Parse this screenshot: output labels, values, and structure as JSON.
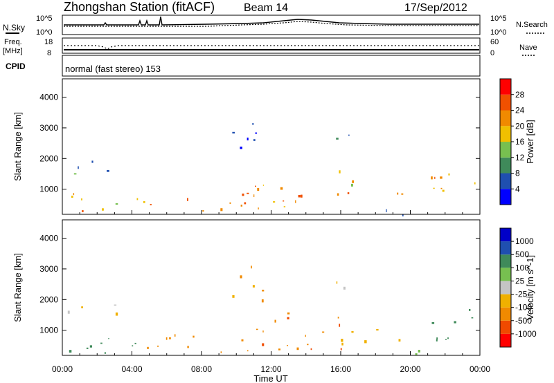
{
  "header": {
    "station": "Zhongshan Station (fitACF)",
    "beam": "Beam 14",
    "date": "17/Sep/2012"
  },
  "noise_panel": {
    "left_label": "N.Sky",
    "right_label": "N.Search",
    "ticks_left": [
      "10^5",
      "10^0"
    ],
    "ticks_right": [
      "10^5",
      "10^0"
    ]
  },
  "freq_panel": {
    "left_label_1": "Freq.",
    "left_label_2": "[MHz]",
    "ticks_left": [
      "18",
      "8"
    ],
    "ticks_right": [
      "60",
      "0"
    ],
    "right_label": "Nave"
  },
  "cpid_panel": {
    "label": "CPID",
    "text": "normal (fast stereo) 153"
  },
  "colors": {
    "power": [
      "#0000ff",
      "#1f4fb0",
      "#3f8a5a",
      "#77c050",
      "#f0c000",
      "#f08a00",
      "#f05000",
      "#ff0000"
    ],
    "velocity": [
      "#ff0000",
      "#f04a00",
      "#f08a00",
      "#f0b000",
      "#c4c4c4",
      "#77c050",
      "#3f8a5a",
      "#1f4fb0",
      "#0000c8"
    ]
  },
  "chart_data": [
    {
      "type": "heatmap",
      "title": "",
      "xlabel": "Time UT",
      "ylabel": "Slant Range [km]",
      "x_ticks": [
        "00:00",
        "04:00",
        "08:00",
        "12:00",
        "16:00",
        "20:00",
        "00:00"
      ],
      "y_ticks": [
        "1000",
        "2000",
        "3000",
        "4000"
      ],
      "xlim": [
        0,
        24
      ],
      "ylim": [
        180,
        4600
      ],
      "colorbar_label": "Power [dB]",
      "colorbar_ticks": [
        "28",
        "24",
        "20",
        "16",
        "12",
        "8",
        "4"
      ],
      "colorbar_range": [
        0,
        32
      ],
      "scatter_regions": [
        {
          "t": [
            0.0,
            2.2
          ],
          "r": [
            250,
            1050
          ],
          "v": 22
        },
        {
          "t": [
            0.0,
            3.8
          ],
          "r": [
            1500,
            1950
          ],
          "v": 8
        },
        {
          "t": [
            2.0,
            5.0
          ],
          "r": [
            350,
            900
          ],
          "v": 20
        },
        {
          "t": [
            5.0,
            10.5
          ],
          "r": [
            300,
            900
          ],
          "v": 24
        },
        {
          "t": [
            10.5,
            15.0
          ],
          "r": [
            400,
            1300
          ],
          "v": 22
        },
        {
          "t": [
            12.5,
            14.5
          ],
          "r": [
            600,
            1100
          ],
          "v": 28
        },
        {
          "t": [
            15.0,
            16.8
          ],
          "r": [
            800,
            1700
          ],
          "v": 16
        },
        {
          "t": [
            16.0,
            17.0
          ],
          "r": [
            600,
            1000
          ],
          "v": 24
        },
        {
          "t": [
            17.2,
            19.5
          ],
          "r": [
            600,
            1000
          ],
          "v": 26
        },
        {
          "t": [
            18.0,
            21.0
          ],
          "r": [
            180,
            500
          ],
          "v": 6
        },
        {
          "t": [
            21.0,
            24.0
          ],
          "r": [
            600,
            1700
          ],
          "v": 22
        },
        {
          "t": [
            15.5,
            16.5
          ],
          "r": [
            2300,
            2900
          ],
          "v": 6
        },
        {
          "t": [
            9.5,
            11.5
          ],
          "r": [
            2000,
            3200
          ],
          "v": 6
        }
      ]
    },
    {
      "type": "heatmap",
      "title": "",
      "xlabel": "Time UT",
      "ylabel": "Slant Range [km]",
      "x_ticks": [
        "00:00",
        "04:00",
        "08:00",
        "12:00",
        "16:00",
        "20:00",
        "00:00"
      ],
      "y_ticks": [
        "1000",
        "2000",
        "3000",
        "4000"
      ],
      "xlim": [
        0,
        24
      ],
      "ylim": [
        180,
        4600
      ],
      "colorbar_label": "Velocity [m s^-1]",
      "colorbar_ticks": [
        "1000",
        "500",
        "100",
        "25",
        "-25",
        "-100",
        "-500",
        "-1000"
      ],
      "scatter_regions": [
        {
          "t": [
            0.0,
            4.5
          ],
          "r": [
            250,
            1000
          ],
          "v": 200
        },
        {
          "t": [
            0.0,
            3.5
          ],
          "r": [
            1500,
            1950
          ],
          "v": 0
        },
        {
          "t": [
            4.5,
            11.0
          ],
          "r": [
            300,
            900
          ],
          "v": -300
        },
        {
          "t": [
            11.0,
            16.0
          ],
          "r": [
            400,
            1700
          ],
          "v": -400
        },
        {
          "t": [
            16.0,
            19.5
          ],
          "r": [
            500,
            1200
          ],
          "v": -80
        },
        {
          "t": [
            18.0,
            21.0
          ],
          "r": [
            180,
            500
          ],
          "v": 60
        },
        {
          "t": [
            21.0,
            24.0
          ],
          "r": [
            600,
            1700
          ],
          "v": 250
        },
        {
          "t": [
            15.5,
            16.5
          ],
          "r": [
            2300,
            2900
          ],
          "v": 0
        },
        {
          "t": [
            9.5,
            11.5
          ],
          "r": [
            2000,
            3200
          ],
          "v": -120
        }
      ]
    }
  ]
}
